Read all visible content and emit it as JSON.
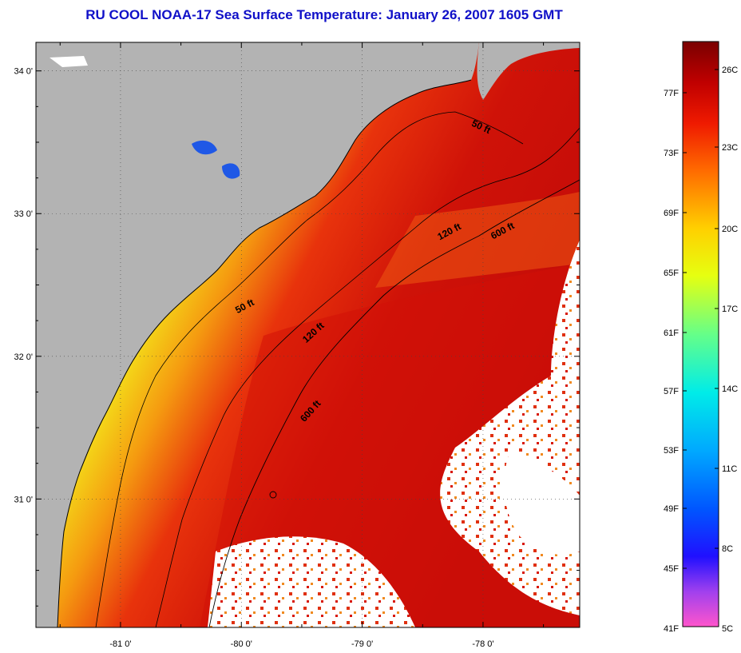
{
  "title": "RU COOL  NOAA-17  Sea Surface Temperature:  January 26, 2007 1605 GMT",
  "map": {
    "lon_range": [
      -81.7,
      -77.2
    ],
    "lat_range": [
      30.1,
      34.2
    ],
    "lon_ticks": [
      {
        "value": -81,
        "label": "-81 0'"
      },
      {
        "value": -80,
        "label": "-80 0'"
      },
      {
        "value": -79,
        "label": "-79 0'"
      },
      {
        "value": -78,
        "label": "-78 0'"
      }
    ],
    "lat_ticks": [
      {
        "value": 34,
        "label": "34 0'"
      },
      {
        "value": 33,
        "label": "33 0'"
      },
      {
        "value": 32,
        "label": "32 0'"
      },
      {
        "value": 31,
        "label": "31 0'"
      }
    ],
    "land_color": "#b3b3b3",
    "cloud_color": "#ffffff",
    "grid": "dotted",
    "contours": [
      {
        "label": "50 ft",
        "depth_ft": 50
      },
      {
        "label": "50 ft",
        "depth_ft": 50
      },
      {
        "label": "120 ft",
        "depth_ft": 120
      },
      {
        "label": "120 ft",
        "depth_ft": 120
      },
      {
        "label": "600 ft",
        "depth_ft": 600
      },
      {
        "label": "600 ft",
        "depth_ft": 600
      }
    ]
  },
  "colorbar": {
    "fahrenheit_labels": [
      "77F",
      "73F",
      "69F",
      "65F",
      "61F",
      "57F",
      "53F",
      "49F",
      "45F",
      "41F"
    ],
    "celsius_labels": [
      "26C",
      "23C",
      "20C",
      "17C",
      "14C",
      "11C",
      "8C",
      "5C"
    ],
    "stops": [
      "#ff55cc",
      "#9933ff",
      "#0000ff",
      "#0066ff",
      "#00aaff",
      "#00e6ff",
      "#33ffcc",
      "#99ff66",
      "#ffff00",
      "#ffaa00",
      "#ff5500",
      "#ee1100",
      "#bb0000",
      "#7a0000"
    ]
  }
}
